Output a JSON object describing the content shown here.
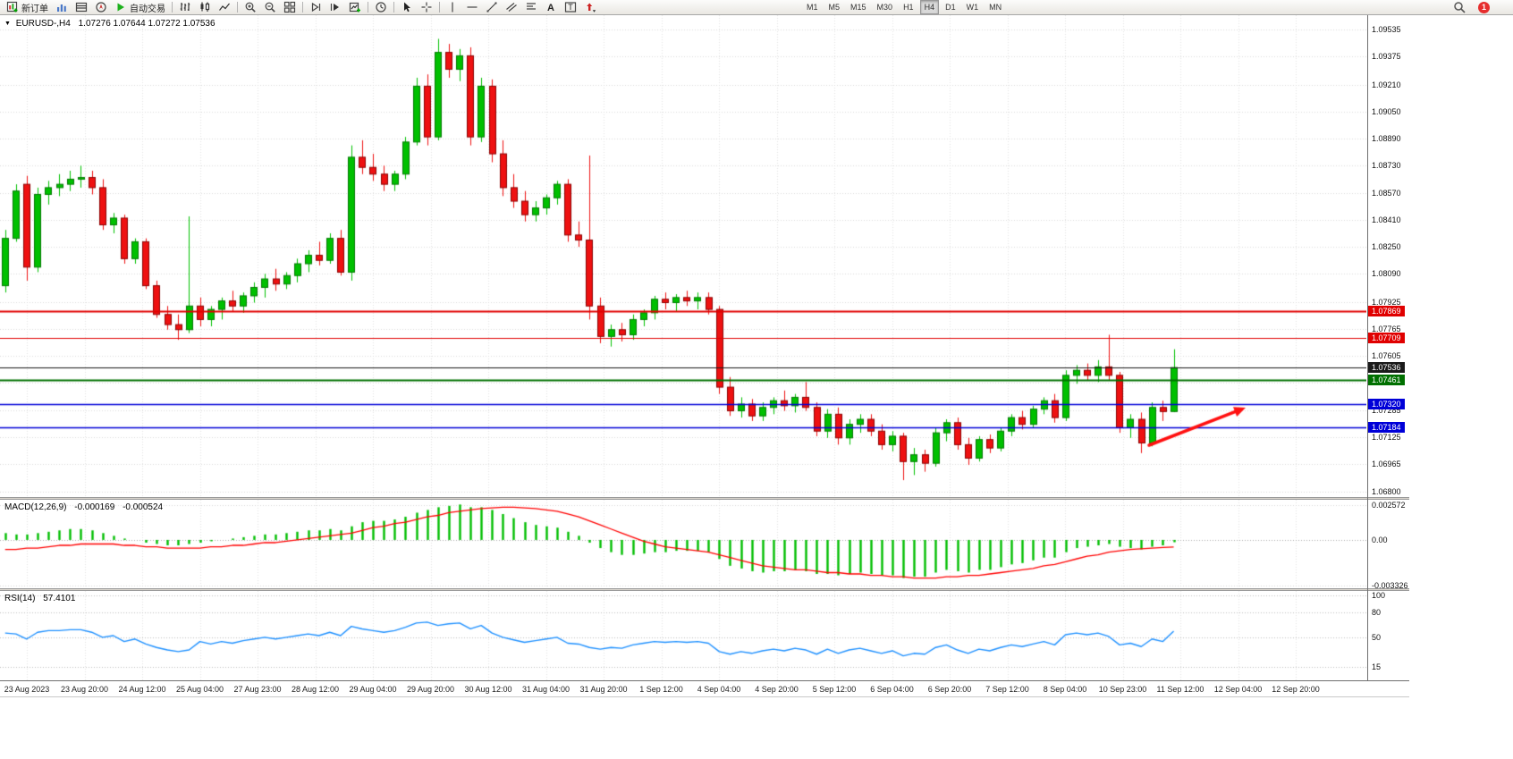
{
  "toolbar": {
    "new_order_label": "新订单",
    "autotrading_label": "自动交易",
    "left_icons": [
      "market-watch-icon",
      "data-window-icon",
      "navigator-icon"
    ],
    "tool_groups": [
      "bars-icon",
      "candles-icon",
      "line-chart-icon",
      "|",
      "zoom-in-icon",
      "zoom-out-icon",
      "tile-windows-icon",
      "|",
      "auto-scroll-icon",
      "chart-shift-icon",
      "new-chart-icon",
      "|",
      "clock-icon",
      "|",
      "cursor-icon",
      "crosshair-icon",
      "|",
      "vline-icon",
      "hline-icon",
      "trendline-icon",
      "channel-icon",
      "fibonacci-icon",
      "text-icon",
      "label-icon",
      "arrows-icon"
    ],
    "timeframes": [
      "M1",
      "M5",
      "M15",
      "M30",
      "H1",
      "H4",
      "D1",
      "W1",
      "MN"
    ],
    "active_timeframe": "H4",
    "notification_count": "1"
  },
  "chart_data": [
    {
      "type": "candlestick",
      "symbol": "EURUSD-",
      "timeframe": "H4",
      "title": "EURUSD-,H4",
      "ohlc_line": "1.07276 1.07644 1.07272 1.07536",
      "ylim": [
        1.0677,
        1.0962
      ],
      "y_ticks": [
        "1.09535",
        "1.09375",
        "1.09210",
        "1.09050",
        "1.08890",
        "1.08730",
        "1.08570",
        "1.08410",
        "1.08250",
        "1.08090",
        "1.07925",
        "1.07765",
        "1.07605",
        "1.07285",
        "1.07125",
        "1.06965",
        "1.06800"
      ],
      "grid_extra": [
        1.07445
      ],
      "colors": {
        "up": "#00C000",
        "up_border": "#007800",
        "down": "#EE1111",
        "down_border": "#8B0000",
        "grid": "#DADADA"
      },
      "hlines": [
        {
          "label": "1.07869",
          "color": "#E00000",
          "width": 2
        },
        {
          "label": "1.07709",
          "color": "#E00000",
          "width": 1.2
        },
        {
          "label": "1.07536",
          "color": "#1a1a1a",
          "width": 1
        },
        {
          "label": "1.07461",
          "color": "#007000",
          "width": 2
        },
        {
          "label": "1.07320",
          "color": "#0000D8",
          "width": 1.6
        },
        {
          "label": "1.07184",
          "color": "#0000D8",
          "width": 1.6
        }
      ],
      "annotations": [
        {
          "type": "arrow",
          "from": [
            1285,
            498
          ],
          "to": [
            1393,
            456
          ],
          "color": "#FF1010",
          "width": 3.5
        }
      ],
      "x_labels": [
        "23 Aug 2023",
        "23 Aug 20:00",
        "24 Aug 12:00",
        "25 Aug 04:00",
        "27 Aug 23:00",
        "28 Aug 12:00",
        "29 Aug 04:00",
        "29 Aug 20:00",
        "30 Aug 12:00",
        "31 Aug 04:00",
        "31 Aug 20:00",
        "1 Sep 12:00",
        "4 Sep 04:00",
        "4 Sep 20:00",
        "5 Sep 12:00",
        "6 Sep 04:00",
        "6 Sep 20:00",
        "7 Sep 12:00",
        "8 Sep 04:00",
        "10 Sep 23:00",
        "11 Sep 12:00",
        "12 Sep 04:00",
        "12 Sep 20:00"
      ],
      "candles": [
        [
          1.0802,
          1.0835,
          1.0798,
          1.083
        ],
        [
          1.083,
          1.0862,
          1.0828,
          1.0858
        ],
        [
          1.0862,
          1.0867,
          1.0805,
          1.0813
        ],
        [
          1.0813,
          1.086,
          1.081,
          1.0856
        ],
        [
          1.0856,
          1.0864,
          1.085,
          1.086
        ],
        [
          1.086,
          1.0868,
          1.0855,
          1.0862
        ],
        [
          1.0862,
          1.087,
          1.0858,
          1.0865
        ],
        [
          1.0865,
          1.0873,
          1.086,
          1.0866
        ],
        [
          1.0866,
          1.087,
          1.0856,
          1.086
        ],
        [
          1.086,
          1.0865,
          1.0835,
          1.0838
        ],
        [
          1.0838,
          1.0845,
          1.0833,
          1.0842
        ],
        [
          1.0842,
          1.0844,
          1.0815,
          1.0818
        ],
        [
          1.0818,
          1.083,
          1.0815,
          1.0828
        ],
        [
          1.0828,
          1.083,
          1.08,
          1.0802
        ],
        [
          1.0802,
          1.0805,
          1.0783,
          1.0785
        ],
        [
          1.0785,
          1.079,
          1.0776,
          1.0779
        ],
        [
          1.0779,
          1.0785,
          1.077,
          1.0776
        ],
        [
          1.0776,
          1.0843,
          1.0774,
          1.079
        ],
        [
          1.079,
          1.0795,
          1.0778,
          1.0782
        ],
        [
          1.0782,
          1.079,
          1.0778,
          1.0788
        ],
        [
          1.0788,
          1.0795,
          1.0782,
          1.0793
        ],
        [
          1.0793,
          1.0799,
          1.0787,
          1.079
        ],
        [
          1.079,
          1.0798,
          1.0786,
          1.0796
        ],
        [
          1.0796,
          1.0804,
          1.0792,
          1.0801
        ],
        [
          1.0801,
          1.0809,
          1.0795,
          1.0806
        ],
        [
          1.0806,
          1.0812,
          1.0799,
          1.0803
        ],
        [
          1.0803,
          1.081,
          1.08,
          1.0808
        ],
        [
          1.0808,
          1.0818,
          1.0804,
          1.0815
        ],
        [
          1.0815,
          1.0823,
          1.081,
          1.082
        ],
        [
          1.082,
          1.0828,
          1.0814,
          1.0817
        ],
        [
          1.0817,
          1.0833,
          1.0815,
          1.083
        ],
        [
          1.083,
          1.0835,
          1.0808,
          1.081
        ],
        [
          1.081,
          1.0885,
          1.0805,
          1.0878
        ],
        [
          1.0878,
          1.0888,
          1.0868,
          1.0872
        ],
        [
          1.0872,
          1.088,
          1.0864,
          1.0868
        ],
        [
          1.0868,
          1.0873,
          1.0858,
          1.0862
        ],
        [
          1.0862,
          1.087,
          1.0858,
          1.0868
        ],
        [
          1.0868,
          1.089,
          1.0865,
          1.0887
        ],
        [
          1.0887,
          1.0925,
          1.0885,
          1.092
        ],
        [
          1.092,
          1.0927,
          1.0885,
          1.089
        ],
        [
          1.089,
          1.0948,
          1.0888,
          1.094
        ],
        [
          1.094,
          1.0945,
          1.0925,
          1.093
        ],
        [
          1.093,
          1.0942,
          1.0923,
          1.0938
        ],
        [
          1.0938,
          1.0943,
          1.0885,
          1.089
        ],
        [
          1.089,
          1.0925,
          1.0887,
          1.092
        ],
        [
          1.092,
          1.0924,
          1.0875,
          1.088
        ],
        [
          1.088,
          1.0888,
          1.0855,
          1.086
        ],
        [
          1.086,
          1.0868,
          1.0848,
          1.0852
        ],
        [
          1.0852,
          1.0858,
          1.084,
          1.0844
        ],
        [
          1.0844,
          1.0852,
          1.084,
          1.0848
        ],
        [
          1.0848,
          1.0856,
          1.0844,
          1.0854
        ],
        [
          1.0854,
          1.0864,
          1.085,
          1.0862
        ],
        [
          1.0862,
          1.0865,
          1.0828,
          1.0832
        ],
        [
          1.0832,
          1.084,
          1.0825,
          1.0829
        ],
        [
          1.0829,
          1.0879,
          1.0782,
          1.079
        ],
        [
          1.079,
          1.0795,
          1.0768,
          1.0772
        ],
        [
          1.0772,
          1.0779,
          1.0766,
          1.0776
        ],
        [
          1.0776,
          1.078,
          1.0769,
          1.0773
        ],
        [
          1.0773,
          1.0785,
          1.077,
          1.0782
        ],
        [
          1.0782,
          1.0788,
          1.0778,
          1.0786
        ],
        [
          1.0786,
          1.0796,
          1.0782,
          1.0794
        ],
        [
          1.0794,
          1.0798,
          1.0788,
          1.0792
        ],
        [
          1.0792,
          1.0797,
          1.0787,
          1.0795
        ],
        [
          1.0795,
          1.0799,
          1.079,
          1.0793
        ],
        [
          1.0793,
          1.0798,
          1.0788,
          1.0795
        ],
        [
          1.0795,
          1.0798,
          1.0785,
          1.0788
        ],
        [
          1.0788,
          1.079,
          1.0738,
          1.0742
        ],
        [
          1.0742,
          1.0748,
          1.0725,
          1.0728
        ],
        [
          1.0728,
          1.0736,
          1.0724,
          1.0732
        ],
        [
          1.0732,
          1.0735,
          1.0722,
          1.0725
        ],
        [
          1.0725,
          1.0733,
          1.0722,
          1.073
        ],
        [
          1.073,
          1.0736,
          1.0726,
          1.0734
        ],
        [
          1.0734,
          1.074,
          1.0728,
          1.0731
        ],
        [
          1.0731,
          1.0738,
          1.0727,
          1.0736
        ],
        [
          1.0736,
          1.0745,
          1.0728,
          1.073
        ],
        [
          1.073,
          1.0733,
          1.0713,
          1.0716
        ],
        [
          1.0716,
          1.0729,
          1.0712,
          1.0726
        ],
        [
          1.0726,
          1.073,
          1.0708,
          1.0712
        ],
        [
          1.0712,
          1.0723,
          1.0708,
          1.072
        ],
        [
          1.072,
          1.0726,
          1.0715,
          1.0723
        ],
        [
          1.0723,
          1.0726,
          1.0713,
          1.0716
        ],
        [
          1.0716,
          1.072,
          1.0705,
          1.0708
        ],
        [
          1.0708,
          1.0716,
          1.0704,
          1.0713
        ],
        [
          1.0713,
          1.0715,
          1.0687,
          1.0698
        ],
        [
          1.0698,
          1.0706,
          1.069,
          1.0702
        ],
        [
          1.0702,
          1.0705,
          1.0692,
          1.0697
        ],
        [
          1.0697,
          1.0718,
          1.0695,
          1.0715
        ],
        [
          1.0715,
          1.0723,
          1.071,
          1.0721
        ],
        [
          1.0721,
          1.0724,
          1.0705,
          1.0708
        ],
        [
          1.0708,
          1.0712,
          1.0696,
          1.07
        ],
        [
          1.07,
          1.0713,
          1.0698,
          1.0711
        ],
        [
          1.0711,
          1.0714,
          1.0703,
          1.0706
        ],
        [
          1.0706,
          1.0718,
          1.0704,
          1.0716
        ],
        [
          1.0716,
          1.0726,
          1.0713,
          1.0724
        ],
        [
          1.0724,
          1.0728,
          1.0717,
          1.072
        ],
        [
          1.072,
          1.0731,
          1.0718,
          1.0729
        ],
        [
          1.0729,
          1.0736,
          1.0726,
          1.0734
        ],
        [
          1.0734,
          1.0738,
          1.0721,
          1.0724
        ],
        [
          1.0724,
          1.0752,
          1.0722,
          1.0749
        ],
        [
          1.0749,
          1.0755,
          1.0744,
          1.0752
        ],
        [
          1.0752,
          1.0756,
          1.0746,
          1.0749
        ],
        [
          1.0749,
          1.0758,
          1.0745,
          1.0754
        ],
        [
          1.0754,
          1.0773,
          1.0746,
          1.0749
        ],
        [
          1.0749,
          1.0751,
          1.0715,
          1.0718
        ],
        [
          1.0718,
          1.0726,
          1.0712,
          1.0723
        ],
        [
          1.0723,
          1.0727,
          1.0703,
          1.0709
        ],
        [
          1.0709,
          1.0733,
          1.0707,
          1.073
        ],
        [
          1.073,
          1.0734,
          1.0722,
          1.07276
        ],
        [
          1.07276,
          1.07644,
          1.07272,
          1.07536
        ]
      ]
    },
    {
      "type": "macd",
      "label": "MACD(12,26,9)",
      "main_value": "-0.000169",
      "signal_value": "-0.000524",
      "ylim": [
        -0.00355,
        0.00295
      ],
      "y_ticks": [
        "0.002572",
        "0.00",
        "-0.003326"
      ],
      "colors": {
        "histogram": "#00BE00",
        "signal": "#FF0000"
      },
      "histogram": [
        0.0005,
        0.0004,
        0.0004,
        0.0005,
        0.0006,
        0.0007,
        0.0008,
        0.0008,
        0.0007,
        0.0005,
        0.0003,
        0.0001,
        0.0,
        -0.0002,
        -0.0003,
        -0.0004,
        -0.0004,
        -0.0003,
        -0.0002,
        -0.0001,
        0.0,
        0.0001,
        0.0002,
        0.0003,
        0.0004,
        0.0004,
        0.0005,
        0.0006,
        0.0007,
        0.0007,
        0.0008,
        0.0007,
        0.001,
        0.0013,
        0.0014,
        0.0014,
        0.0015,
        0.0017,
        0.002,
        0.0022,
        0.0024,
        0.0025,
        0.0026,
        0.0024,
        0.0024,
        0.0022,
        0.0019,
        0.0016,
        0.0013,
        0.0011,
        0.001,
        0.0009,
        0.0006,
        0.0003,
        -0.0002,
        -0.0006,
        -0.0009,
        -0.0011,
        -0.0011,
        -0.001,
        -0.0009,
        -0.0009,
        -0.0008,
        -0.0008,
        -0.0008,
        -0.0009,
        -0.0014,
        -0.0019,
        -0.0021,
        -0.0023,
        -0.0024,
        -0.0023,
        -0.0023,
        -0.0022,
        -0.0023,
        -0.0025,
        -0.0025,
        -0.0026,
        -0.0025,
        -0.0024,
        -0.0025,
        -0.0026,
        -0.0026,
        -0.0028,
        -0.0027,
        -0.0027,
        -0.0024,
        -0.0022,
        -0.0023,
        -0.0024,
        -0.0022,
        -0.0022,
        -0.002,
        -0.0018,
        -0.0017,
        -0.0015,
        -0.0013,
        -0.0013,
        -0.0009,
        -0.0006,
        -0.0005,
        -0.0004,
        -0.0003,
        -0.0005,
        -0.0006,
        -0.0007,
        -0.0005,
        -0.0004,
        -0.000169
      ],
      "signal": [
        -0.0007,
        -0.0007,
        -0.0006,
        -0.0006,
        -0.0005,
        -0.0004,
        -0.0004,
        -0.0003,
        -0.0003,
        -0.0003,
        -0.0003,
        -0.0004,
        -0.0004,
        -0.0005,
        -0.0005,
        -0.0006,
        -0.0006,
        -0.0006,
        -0.0006,
        -0.0005,
        -0.0005,
        -0.0004,
        -0.0004,
        -0.0003,
        -0.0002,
        -0.0002,
        -0.0001,
        0.0,
        0.0001,
        0.0002,
        0.0003,
        0.0004,
        0.0005,
        0.0007,
        0.0009,
        0.001,
        0.0012,
        0.0013,
        0.0015,
        0.0017,
        0.0018,
        0.002,
        0.0021,
        0.0022,
        0.0023,
        0.00235,
        0.0024,
        0.0024,
        0.00235,
        0.0023,
        0.0022,
        0.0021,
        0.0019,
        0.0017,
        0.0014,
        0.0011,
        0.0008,
        0.0005,
        0.0002,
        -0.0001,
        -0.0003,
        -0.0005,
        -0.0006,
        -0.0007,
        -0.0008,
        -0.0009,
        -0.0011,
        -0.0013,
        -0.0015,
        -0.0017,
        -0.0019,
        -0.002,
        -0.0021,
        -0.0022,
        -0.0022,
        -0.0023,
        -0.0024,
        -0.0024,
        -0.0025,
        -0.0025,
        -0.0026,
        -0.0026,
        -0.0027,
        -0.0027,
        -0.0028,
        -0.0028,
        -0.0028,
        -0.0027,
        -0.0027,
        -0.0026,
        -0.0026,
        -0.0025,
        -0.0024,
        -0.0023,
        -0.0022,
        -0.0021,
        -0.0019,
        -0.0018,
        -0.0016,
        -0.0014,
        -0.0012,
        -0.0011,
        -0.0009,
        -0.0008,
        -0.0007,
        -0.00065,
        -0.0006,
        -0.00055,
        -0.000524
      ]
    },
    {
      "type": "line",
      "label": "RSI(14)",
      "value": "57.4101",
      "ylim": [
        -1,
        105
      ],
      "levels": [
        100,
        80,
        50,
        15
      ],
      "y_ticks": [
        "100",
        "80",
        "50",
        "15"
      ],
      "color": "#1E90FF",
      "values": [
        55,
        54,
        48,
        56,
        58,
        58,
        59,
        59,
        56,
        50,
        52,
        45,
        48,
        42,
        38,
        35,
        33,
        35,
        45,
        42,
        45,
        43,
        46,
        48,
        50,
        48,
        50,
        52,
        54,
        52,
        56,
        52,
        63,
        60,
        58,
        56,
        58,
        62,
        67,
        68,
        64,
        66,
        67,
        60,
        64,
        55,
        50,
        47,
        44,
        46,
        48,
        50,
        43,
        42,
        38,
        36,
        38,
        37,
        41,
        43,
        45,
        44,
        45,
        44,
        45,
        43,
        33,
        30,
        33,
        31,
        34,
        36,
        34,
        37,
        35,
        30,
        36,
        31,
        35,
        37,
        34,
        31,
        34,
        28,
        31,
        30,
        38,
        41,
        35,
        31,
        36,
        34,
        38,
        41,
        39,
        42,
        45,
        41,
        53,
        55,
        53,
        55,
        51,
        41,
        43,
        39,
        48,
        45,
        57.41
      ]
    }
  ]
}
